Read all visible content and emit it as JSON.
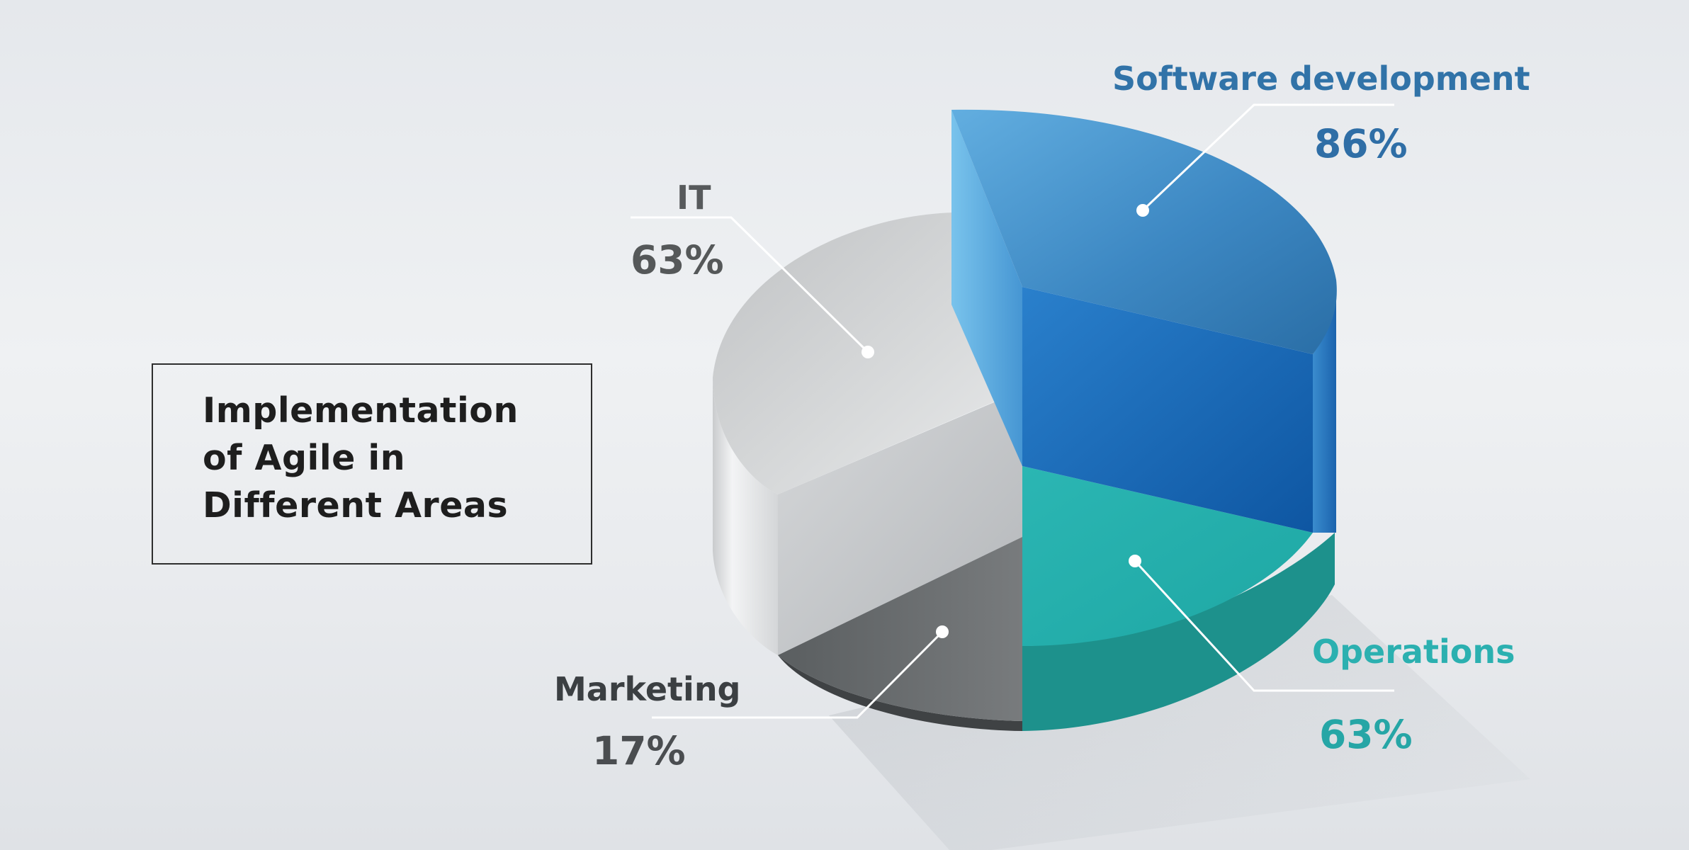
{
  "chart_data": {
    "type": "pie",
    "title": "Implementation of Agile in Different Areas",
    "title_lines": [
      "Implementation",
      "of Agile in",
      "Different Areas"
    ],
    "series": [
      {
        "name": "Software development",
        "value": 86,
        "label": "86%",
        "color": "#2f78b7"
      },
      {
        "name": "Operations",
        "value": 63,
        "label": "63%",
        "color": "#24aaa8"
      },
      {
        "name": "Marketing",
        "value": 17,
        "label": "17%",
        "color": "#5d6163"
      },
      {
        "name": "IT",
        "value": 63,
        "label": "63%",
        "color": "#c7c9cb"
      }
    ]
  },
  "colors": {
    "software_text": "#3173a8",
    "operations_text": "#2bb0b0",
    "marketing_text": "#3b3f42",
    "it_text": "#575a5c",
    "title_text": "#1e1e1e"
  }
}
